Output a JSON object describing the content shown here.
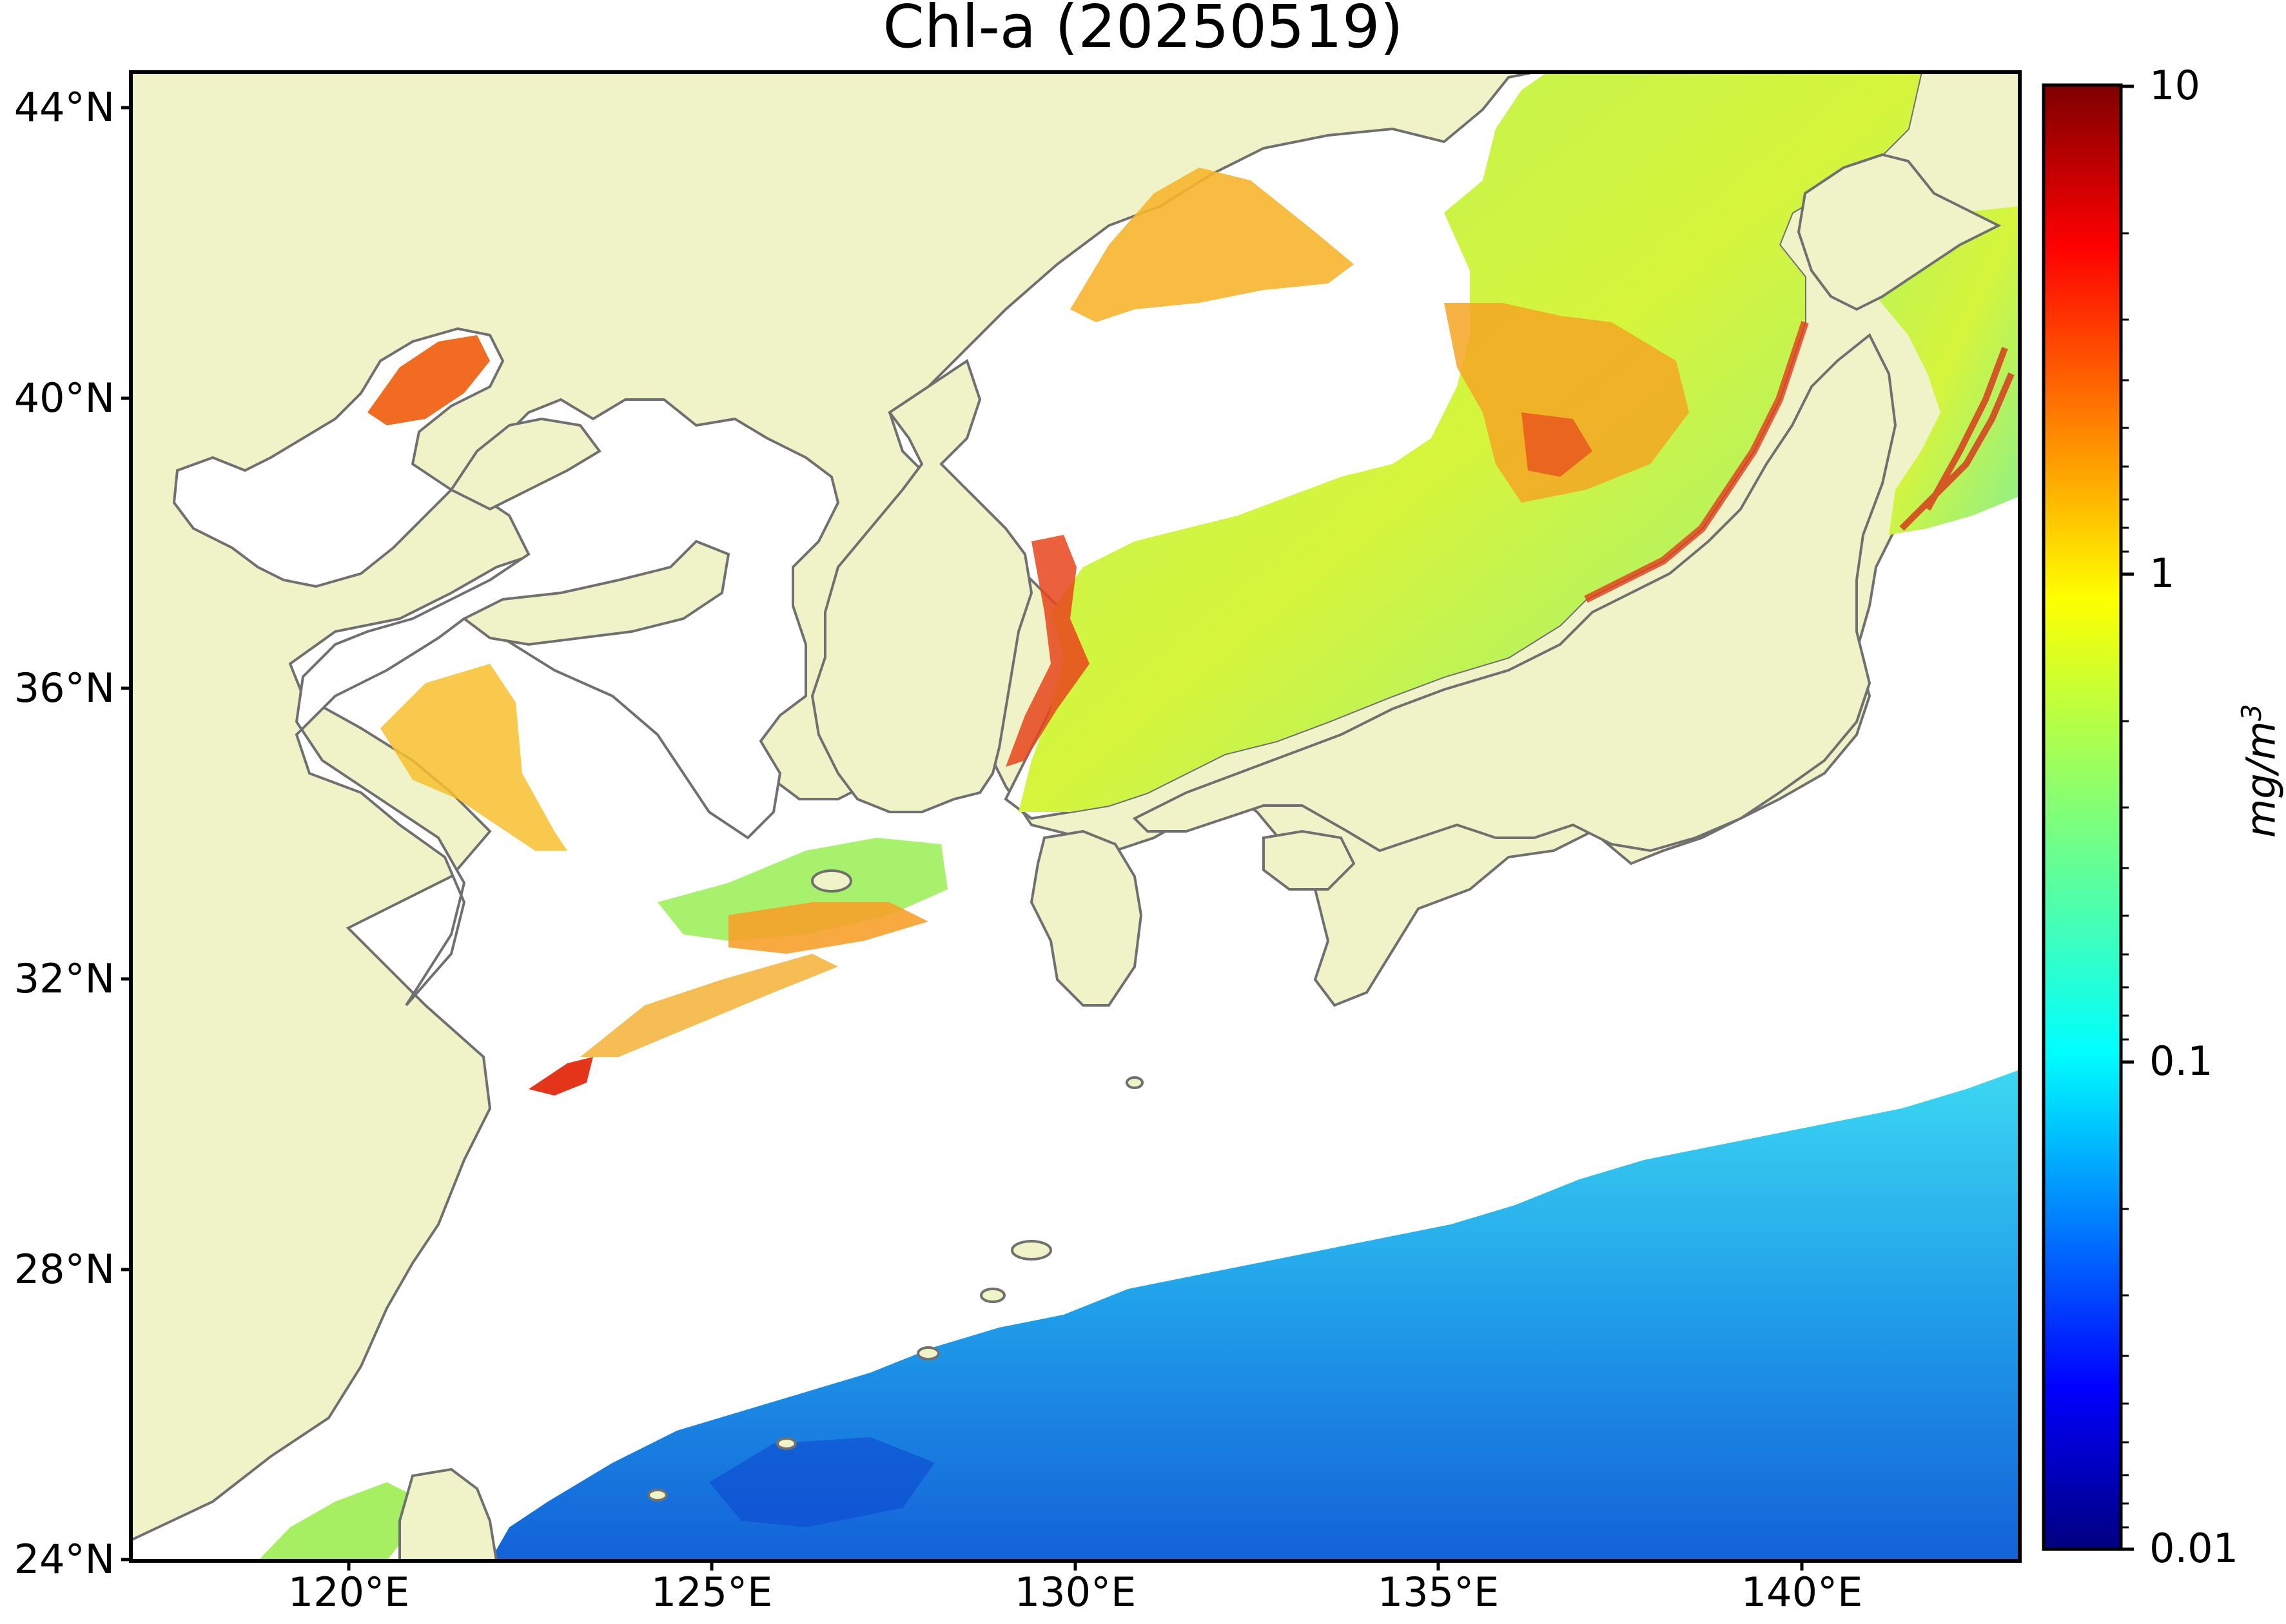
{
  "title": "Chl-a (20250519)",
  "map": {
    "lat_ticks": [
      "44°N",
      "40°N",
      "36°N",
      "32°N",
      "28°N",
      "24°N"
    ],
    "lon_ticks": [
      "120°E",
      "125°E",
      "130°E",
      "135°E",
      "140°E"
    ],
    "extent": {
      "lon_min": 117,
      "lon_max": 143,
      "lat_min": 24,
      "lat_max": 44.5
    },
    "colors": {
      "land": "#f0f3c8",
      "coastline": "#707070",
      "no_data": "#ffffff"
    }
  },
  "colorbar": {
    "scale": "log",
    "ticks": [
      "10",
      "1",
      "0.1",
      "0.01"
    ],
    "unit_label": "mg/m",
    "unit_exponent": "3",
    "colormap": "jet",
    "range": [
      0.01,
      10
    ]
  }
}
